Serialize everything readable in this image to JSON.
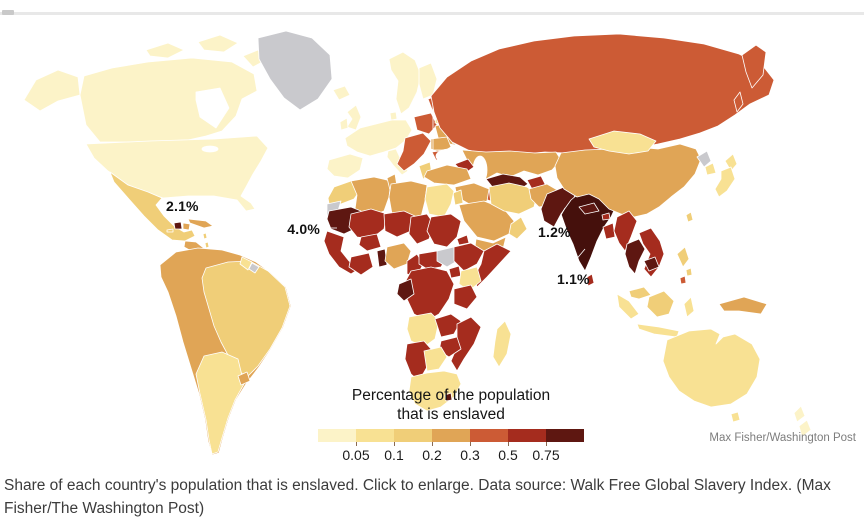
{
  "page": {
    "caption": "Share of each country's population that is enslaved. Click to enlarge. Data source: Walk Free Global Slavery Index. (Max Fisher/The Washington Post)",
    "attribution": "Max Fisher/Washington Post"
  },
  "chart_data": {
    "type": "choropleth_map",
    "title": "Percentage of the population that is enslaved",
    "title_lines": [
      "Percentage of the population",
      "that is enslaved"
    ],
    "legend": {
      "threshold_labels": [
        "0.05",
        "0.1",
        "0.2",
        "0.3",
        "0.5",
        "0.75"
      ],
      "colors": [
        "#FCF3C8",
        "#F8E193",
        "#F0CE78",
        "#E0A556",
        "#CC5B35",
        "#A52C1E",
        "#5E1711"
      ],
      "extreme_color": "#45100C",
      "no_data_color": "#C9C9CD",
      "position": "bottom-center"
    },
    "annotations": [
      {
        "label": "2.1%",
        "country": "Haiti"
      },
      {
        "label": "4.0%",
        "country": "Mauritania"
      },
      {
        "label": "1.2%",
        "country": "Pakistan"
      },
      {
        "label": "1.1%",
        "country": "India"
      }
    ],
    "regions_by_level": {
      "above_0.75": [
        "India",
        "Pakistan",
        "Mauritania",
        "Haiti",
        "Nepal",
        "Uzbekistan",
        "Moldova",
        "Benin",
        "Togo",
        "Gabon",
        "Congo",
        "Thailand",
        "Cambodia",
        "Lesotho"
      ],
      "0.5_to_0.75": [
        "Mali",
        "Niger",
        "Chad",
        "Sudan",
        "Ethiopia",
        "Somalia",
        "DR Congo",
        "Tanzania",
        "Senegal",
        "Ghana",
        "Ivory Coast",
        "Cameroon",
        "Zambia",
        "Zimbabwe",
        "Mozambique",
        "Namibia",
        "Myanmar",
        "Vietnam",
        "Laos",
        "Bangladesh",
        "Sri Lanka",
        "Caucasus states",
        "Tajikistan"
      ],
      "0.3_to_0.5": [
        "Russia",
        "Poland",
        "Czech Republic",
        "Hungary",
        "Balkans",
        "Baltic states",
        "Turkmenistan"
      ],
      "0.2_to_0.3": [
        "China",
        "Kazakhstan",
        "Turkey",
        "Saudi Arabia",
        "Ukraine",
        "Romania",
        "Colombia",
        "Venezuela",
        "Peru",
        "Bolivia",
        "Nigeria",
        "Algeria",
        "Libya",
        "Afghanistan",
        "Papua New Guinea",
        "Central America",
        "Cuba"
      ],
      "0.1_to_0.2": [
        "Mexico",
        "Brazil",
        "Iran",
        "Morocco",
        "Oman",
        "Philippines",
        "Malaysia",
        "Greece"
      ],
      "0.05_to_0.1": [
        "Argentina",
        "Chile",
        "Egypt",
        "Kenya",
        "Angola",
        "Botswana",
        "South Africa",
        "Madagascar",
        "Mongolia",
        "Japan",
        "South Korea",
        "Indonesia",
        "Australia",
        "Belarus"
      ],
      "below_0.05": [
        "United States",
        "Canada",
        "United Kingdom",
        "Ireland",
        "Scandinavia",
        "Western Europe",
        "Iceland",
        "New Zealand"
      ],
      "no_data": [
        "Greenland",
        "Western Sahara",
        "South Sudan",
        "North Korea"
      ]
    }
  }
}
